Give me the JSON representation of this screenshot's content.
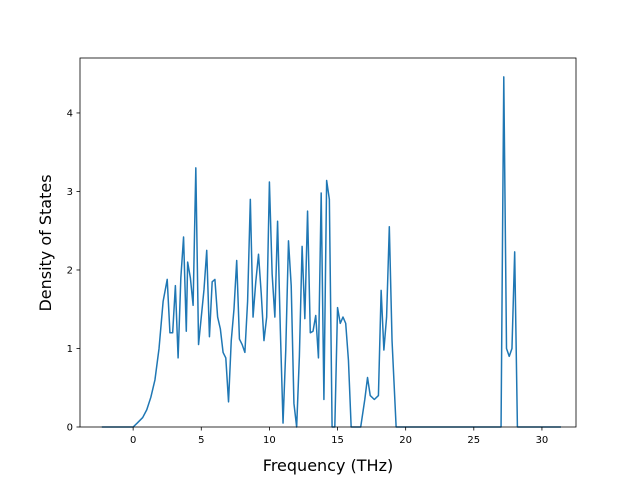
{
  "chart_data": {
    "type": "line",
    "title": "",
    "xlabel": "Frequency (THz)",
    "ylabel": "Density of States",
    "xlim": [
      -3.9,
      32.5
    ],
    "ylim": [
      0,
      4.7
    ],
    "xticks": [
      0,
      5,
      10,
      15,
      20,
      25,
      30
    ],
    "yticks": [
      0,
      1,
      2,
      3,
      4
    ],
    "grid": false,
    "legend": "none",
    "line_color": "#1f77b4",
    "series": [
      {
        "x": [
          -2.3,
          0.0,
          0.3,
          0.7,
          1.0,
          1.3,
          1.6,
          1.9,
          2.2,
          2.5,
          2.7,
          2.9,
          3.1,
          3.3,
          3.5,
          3.7,
          3.9,
          4.0,
          4.2,
          4.4,
          4.6,
          4.8,
          5.0,
          5.2,
          5.4,
          5.6,
          5.8,
          6.0,
          6.2,
          6.4,
          6.6,
          6.8,
          7.0,
          7.2,
          7.4,
          7.6,
          7.8,
          8.0,
          8.2,
          8.4,
          8.6,
          8.8,
          9.0,
          9.2,
          9.4,
          9.6,
          9.8,
          10.0,
          10.2,
          10.4,
          10.6,
          10.8,
          11.0,
          11.2,
          11.4,
          11.6,
          11.8,
          12.0,
          12.2,
          12.4,
          12.6,
          12.8,
          13.0,
          13.2,
          13.4,
          13.6,
          13.8,
          14.0,
          14.2,
          14.4,
          14.6,
          14.8,
          15.0,
          15.2,
          15.4,
          15.6,
          15.8,
          16.0,
          16.4,
          16.7,
          17.0,
          17.2,
          17.4,
          17.7,
          18.0,
          18.2,
          18.4,
          18.6,
          18.8,
          19.0,
          19.3,
          19.5,
          20.0,
          27.0,
          27.2,
          27.4,
          27.6,
          27.8,
          28.0,
          28.2,
          31.4
        ],
        "y": [
          0.0,
          0.0,
          0.05,
          0.12,
          0.22,
          0.38,
          0.6,
          1.0,
          1.6,
          1.88,
          1.2,
          1.2,
          1.8,
          0.88,
          1.9,
          2.42,
          1.22,
          2.1,
          1.9,
          1.55,
          3.3,
          1.05,
          1.4,
          1.75,
          2.25,
          1.15,
          1.85,
          1.88,
          1.4,
          1.25,
          0.95,
          0.88,
          0.32,
          1.1,
          1.5,
          2.12,
          1.12,
          1.05,
          0.95,
          1.6,
          2.9,
          1.4,
          1.85,
          2.2,
          1.7,
          1.1,
          1.4,
          3.12,
          1.95,
          1.4,
          2.62,
          1.25,
          0.05,
          0.98,
          2.37,
          1.8,
          0.3,
          0.0,
          0.9,
          2.3,
          1.38,
          2.75,
          1.2,
          1.22,
          1.42,
          0.88,
          2.98,
          0.35,
          3.14,
          2.9,
          0.0,
          0.0,
          1.52,
          1.32,
          1.4,
          1.32,
          0.85,
          0.0,
          0.0,
          0.0,
          0.35,
          0.63,
          0.4,
          0.35,
          0.4,
          1.74,
          0.98,
          1.4,
          2.55,
          1.1,
          0.0,
          0.0,
          0.0,
          0.0,
          4.46,
          1.0,
          0.9,
          1.0,
          2.23,
          0.0,
          0.0
        ]
      }
    ]
  }
}
